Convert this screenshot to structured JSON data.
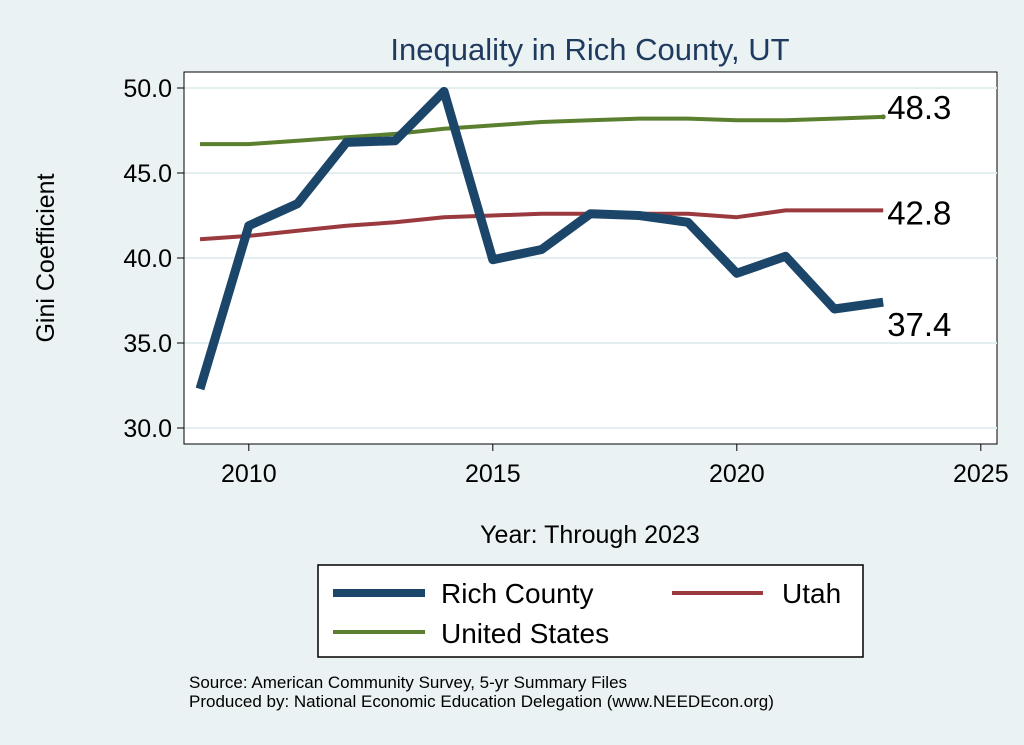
{
  "chart_data": {
    "type": "line",
    "title": "Inequality in Rich County, UT",
    "xlabel": "Year: Through 2023",
    "ylabel": "Gini Coefficient",
    "xlim": [
      2009,
      2025.5
    ],
    "ylim": [
      29.5,
      50.5
    ],
    "x_ticks": [
      2010,
      2015,
      2020,
      2025
    ],
    "y_ticks": [
      30,
      35,
      40,
      45,
      50
    ],
    "y_tick_labels": [
      "30.0",
      "35.0",
      "40.0",
      "45.0",
      "50.0"
    ],
    "grid": true,
    "x": [
      2009,
      2010,
      2011,
      2012,
      2013,
      2014,
      2015,
      2016,
      2017,
      2018,
      2019,
      2020,
      2021,
      2022,
      2023
    ],
    "series": [
      {
        "name": "Rich County",
        "color": "#1b4569",
        "values": [
          32.3,
          41.9,
          43.2,
          46.8,
          46.9,
          49.8,
          39.9,
          40.5,
          42.6,
          42.5,
          42.1,
          39.1,
          40.1,
          37.0,
          37.4
        ],
        "end_label": "37.4"
      },
      {
        "name": "Utah",
        "color": "#9a3a3f",
        "values": [
          41.1,
          41.3,
          41.6,
          41.9,
          42.1,
          42.4,
          42.5,
          42.6,
          42.6,
          42.6,
          42.6,
          42.4,
          42.8,
          42.8,
          42.8
        ],
        "end_label": "42.8"
      },
      {
        "name": "United States",
        "color": "#5a7f2f",
        "values": [
          46.7,
          46.7,
          46.9,
          47.1,
          47.3,
          47.6,
          47.8,
          48.0,
          48.1,
          48.2,
          48.2,
          48.1,
          48.1,
          48.2,
          48.3
        ],
        "end_label": "48.3"
      }
    ],
    "legend": {
      "placement": "bottom",
      "entries": [
        "Rich County",
        "Utah",
        "United States"
      ]
    },
    "source_note": "Source: American Community Survey, 5-yr Summary Files",
    "producer_note": "Produced by: National Economic Education Delegation (www.NEEDEcon.org)"
  }
}
